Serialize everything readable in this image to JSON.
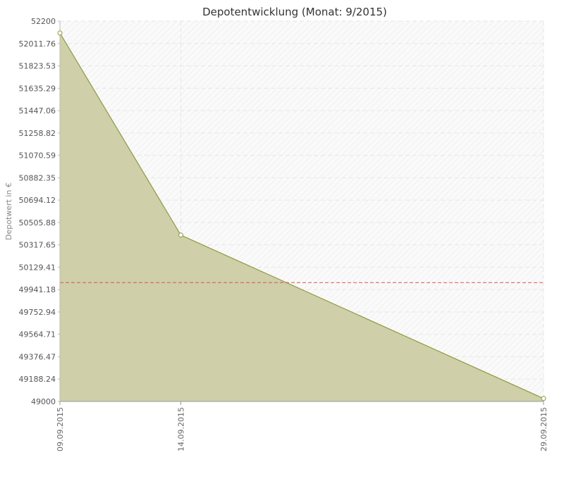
{
  "chart_data": {
    "type": "area",
    "title": "Depotentwicklung (Monat: 9/2015)",
    "xlabel": "",
    "ylabel": "Depotwert in €",
    "categories": [
      "09.09.2015",
      "14.09.2015",
      "29.09.2015"
    ],
    "series": [
      {
        "values": [
          52100,
          50400,
          49025
        ]
      }
    ],
    "ylim": [
      49000,
      52200
    ],
    "yticks": [
      "49000",
      "49188.24",
      "49376.47",
      "49564.71",
      "49752.94",
      "49941.18",
      "50129.41",
      "50317.65",
      "50505.88",
      "50694.12",
      "50882.35",
      "51070.59",
      "51258.82",
      "51447.06",
      "51635.29",
      "51823.53",
      "52011.76",
      "52200"
    ],
    "reference_line": 50000,
    "grid": true,
    "legend": "none",
    "colors": {
      "area_fill": "#cfcfa9",
      "line": "#8f9a3c",
      "reference": "#e05050",
      "plot_bg": "#fafafa",
      "grid": "#e6e6e6",
      "marker_fill": "#ffffff"
    }
  }
}
